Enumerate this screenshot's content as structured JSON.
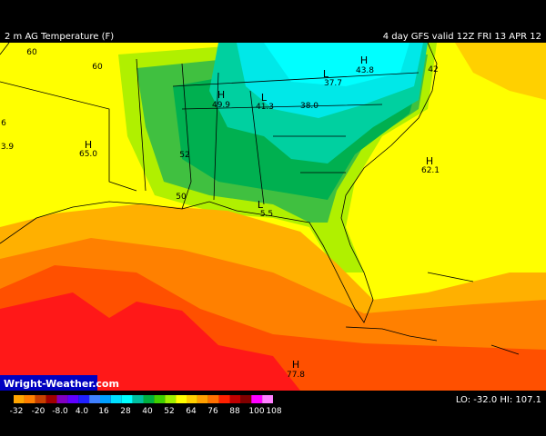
{
  "header": {
    "title": "2 m AG Temperature (F)",
    "valid": "4 day GFS valid 12Z FRI 13 APR 12"
  },
  "map_labels": [
    {
      "value": "60"
    },
    {
      "value": "60"
    },
    {
      "symbol": "H",
      "value": "43.8"
    },
    {
      "symbol": "L",
      "value": "37.7"
    },
    {
      "value": "42"
    },
    {
      "symbol": "H",
      "value": "49.9"
    },
    {
      "symbol": "L",
      "value": "41.3"
    },
    {
      "value": "38.0"
    },
    {
      "value": "6"
    },
    {
      "value": "3.9"
    },
    {
      "symbol": "H",
      "value": "65.0"
    },
    {
      "value": "52"
    },
    {
      "symbol": "H",
      "value": "62.1"
    },
    {
      "value": "50"
    },
    {
      "symbol": "L",
      "value": "5.5"
    },
    {
      "symbol": "H",
      "value": "77.8"
    }
  ],
  "watermark": "Wright-Weather.com",
  "colorbar": {
    "labels": [
      "-32",
      "-20",
      "-8.0",
      "4.0",
      "16",
      "28",
      "40",
      "52",
      "64",
      "76",
      "88",
      "100",
      "108"
    ],
    "colors": [
      "#ffa500",
      "#ff7f00",
      "#c84000",
      "#a00000",
      "#8000c0",
      "#6000ff",
      "#2020ff",
      "#4080ff",
      "#00a0ff",
      "#00e0ff",
      "#00ffff",
      "#00c0a0",
      "#00b040",
      "#40d000",
      "#a0f000",
      "#ffff00",
      "#ffd000",
      "#ffa000",
      "#ff7000",
      "#ff2000",
      "#c00000",
      "#800000",
      "#ff00ff",
      "#ff80ff"
    ]
  },
  "extremes": "LO: -32.0  HI: 107.1"
}
